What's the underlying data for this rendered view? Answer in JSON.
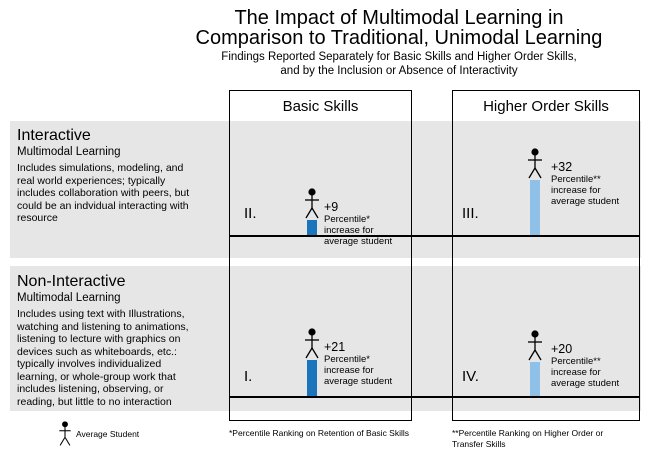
{
  "header": {
    "title_line1": "The Impact of Multimodal Learning in",
    "title_line2": "Comparison to Traditional, Unimodal Learning",
    "subtitle_line1": "Findings Reported Separately for Basic Skills and Higher Order Skills,",
    "subtitle_line2": "and by the Inclusion or Absence of Interactivity"
  },
  "columns": {
    "basic": "Basic Skills",
    "higher": "Higher Order Skills"
  },
  "rows": {
    "interactive": {
      "title": "Interactive",
      "subtitle": "Multimodal Learning",
      "desc": [
        "Includes simulations, modeling, and",
        "real world experiences; typically",
        "includes collaboration with peers, but",
        "could be an indvidual interacting with",
        "resource"
      ]
    },
    "noninteractive": {
      "title": "Non-Interactive",
      "subtitle": "Multimodal Learning",
      "desc": [
        "Includes using text with Illustrations,",
        "watching and listening to animations,",
        "listening to lecture with graphics on",
        "devices such as whiteboards, etc.:",
        "typically involves individualized",
        "learning, or whole-group work that",
        "includes listening, observing, or",
        "reading, but little to no interaction"
      ]
    }
  },
  "quadrants": {
    "II": {
      "roman": "II.",
      "value_label": "+9",
      "value": 9,
      "line1": "Percentile*",
      "line2": "increase for",
      "line3": "average student"
    },
    "III": {
      "roman": "III.",
      "value_label": "+32",
      "value": 32,
      "line1": "Percentile**",
      "line2": "increase for",
      "line3": "average student"
    },
    "I": {
      "roman": "I.",
      "value_label": "+21",
      "value": 21,
      "line1": "Percentile*",
      "line2": "increase for",
      "line3": "average student"
    },
    "IV": {
      "roman": "IV.",
      "value_label": "+20",
      "value": 20,
      "line1": "Percentile**",
      "line2": "increase for",
      "line3": "average student"
    }
  },
  "legend": {
    "label": "Average Student"
  },
  "footnotes": {
    "basic": "*Percentile Ranking on Retention of Basic Skills",
    "higher_line1": "**Percentile Ranking on Higher Order or",
    "higher_line2": "Transfer Skills"
  },
  "colors": {
    "band": "#e6e6e6",
    "basic_bar": "#1a75bc",
    "higher_bar": "#8fc1e8"
  }
}
